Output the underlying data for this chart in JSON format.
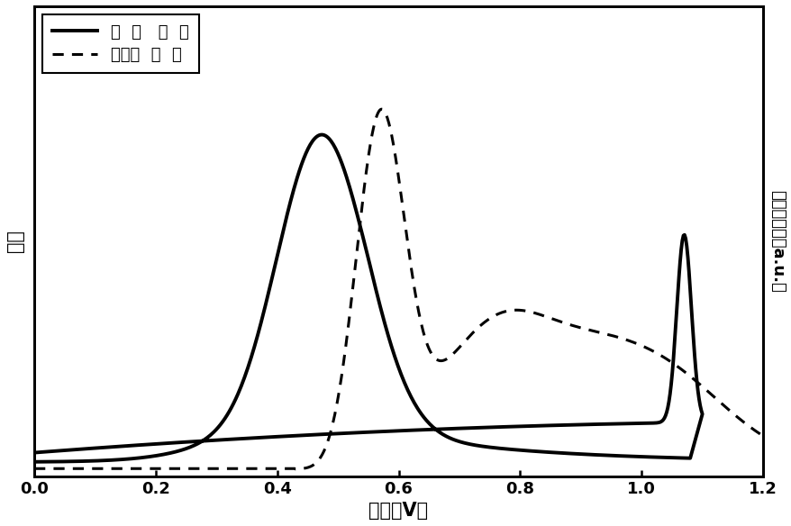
{
  "xlabel": "电压（V）",
  "ylabel_left": "电流",
  "ylabel_right": "电化学发光（a.u.）",
  "xlim": [
    0.0,
    1.2
  ],
  "xticks": [
    0.0,
    0.2,
    0.4,
    0.6,
    0.8,
    1.0,
    1.2
  ],
  "legend_solid": "循 环  伏 安",
  "legend_dot": "电化学 发 光",
  "background_color": "#ffffff",
  "line_color": "#000000",
  "cv_lw": 2.8,
  "ecl_lw": 2.2
}
